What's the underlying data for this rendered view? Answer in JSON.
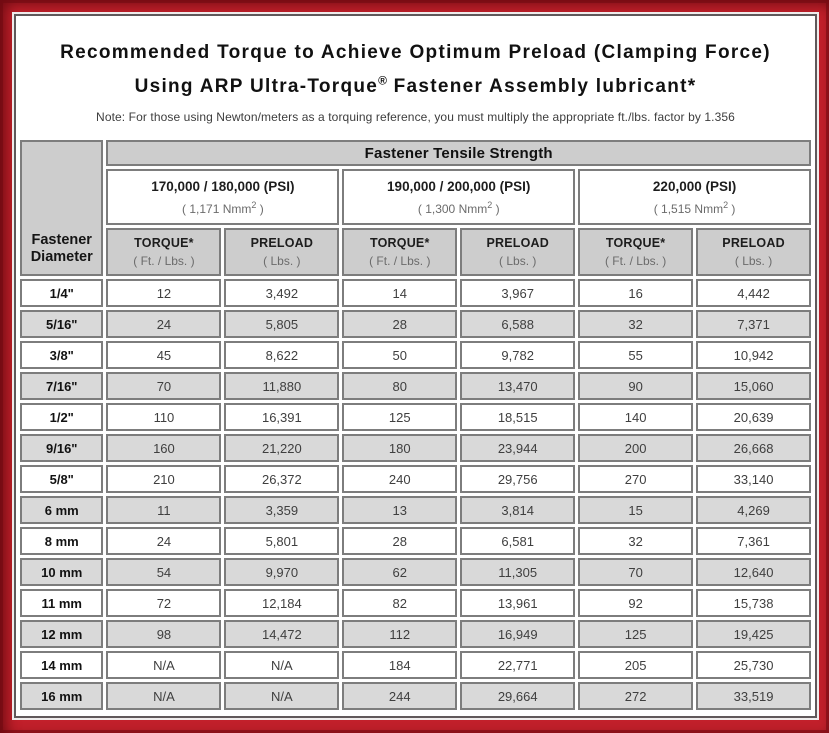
{
  "colors": {
    "frame_red": "#c2202b",
    "frame_dark_edge": "#6e0a10",
    "panel_border": "#60585a",
    "cell_border": "#7d7d7d",
    "header_gray": "#cdcdcd",
    "stripe_gray": "#d9d9d9"
  },
  "header": {
    "title_line1": "Recommended Torque to Achieve Optimum Preload (Clamping Force)",
    "title_line2_pre": "Using ARP Ultra-Torque",
    "title_line2_sup": "®",
    "title_line2_post": " Fastener Assembly lubricant*",
    "note": "Note: For those using Newton/meters as a torquing reference, you must multiply the appropriate ft./lbs. factor by 1.356"
  },
  "table": {
    "corner_header": "Fastener Diameter",
    "tensile_header": "Fastener Tensile Strength",
    "strength_groups": [
      {
        "psi": "170,000 / 180,000 (PSI)",
        "nmm_prefix": "( 1,171 Nmm",
        "nmm_sup": "2",
        "nmm_suffix": " )"
      },
      {
        "psi": "190,000 / 200,000 (PSI)",
        "nmm_prefix": "( 1,300 Nmm",
        "nmm_sup": "2",
        "nmm_suffix": " )"
      },
      {
        "psi": "220,000 (PSI)",
        "nmm_prefix": "( 1,515 Nmm",
        "nmm_sup": "2",
        "nmm_suffix": " )"
      }
    ],
    "measure_headers": [
      {
        "line1": "TORQUE*",
        "line2": "( Ft. / Lbs. )"
      },
      {
        "line1": "PRELOAD",
        "line2": "( Lbs. )"
      }
    ],
    "rows": [
      {
        "diameter": "1/4\"",
        "values": [
          "12",
          "3,492",
          "14",
          "3,967",
          "16",
          "4,442"
        ]
      },
      {
        "diameter": "5/16\"",
        "values": [
          "24",
          "5,805",
          "28",
          "6,588",
          "32",
          "7,371"
        ]
      },
      {
        "diameter": "3/8\"",
        "values": [
          "45",
          "8,622",
          "50",
          "9,782",
          "55",
          "10,942"
        ]
      },
      {
        "diameter": "7/16\"",
        "values": [
          "70",
          "11,880",
          "80",
          "13,470",
          "90",
          "15,060"
        ]
      },
      {
        "diameter": "1/2\"",
        "values": [
          "110",
          "16,391",
          "125",
          "18,515",
          "140",
          "20,639"
        ]
      },
      {
        "diameter": "9/16\"",
        "values": [
          "160",
          "21,220",
          "180",
          "23,944",
          "200",
          "26,668"
        ]
      },
      {
        "diameter": "5/8\"",
        "values": [
          "210",
          "26,372",
          "240",
          "29,756",
          "270",
          "33,140"
        ]
      },
      {
        "diameter": "6 mm",
        "values": [
          "11",
          "3,359",
          "13",
          "3,814",
          "15",
          "4,269"
        ]
      },
      {
        "diameter": "8 mm",
        "values": [
          "24",
          "5,801",
          "28",
          "6,581",
          "32",
          "7,361"
        ]
      },
      {
        "diameter": "10 mm",
        "values": [
          "54",
          "9,970",
          "62",
          "11,305",
          "70",
          "12,640"
        ]
      },
      {
        "diameter": "11 mm",
        "values": [
          "72",
          "12,184",
          "82",
          "13,961",
          "92",
          "15,738"
        ]
      },
      {
        "diameter": "12 mm",
        "values": [
          "98",
          "14,472",
          "112",
          "16,949",
          "125",
          "19,425"
        ]
      },
      {
        "diameter": "14 mm",
        "values": [
          "N/A",
          "N/A",
          "184",
          "22,771",
          "205",
          "25,730"
        ]
      },
      {
        "diameter": "16 mm",
        "values": [
          "N/A",
          "N/A",
          "244",
          "29,664",
          "272",
          "33,519"
        ]
      }
    ]
  }
}
